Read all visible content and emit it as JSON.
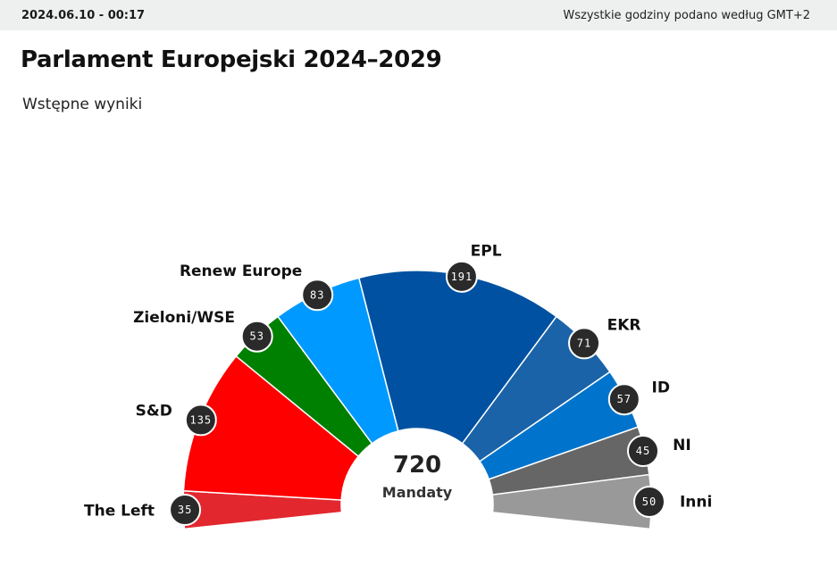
{
  "header": {
    "timestamp": "2024.06.10 - 00:17",
    "timezone_note": "Wszystkie godziny podano według GMT+2"
  },
  "title": "Parlament Europejski 2024–2029",
  "subtitle": "Wstępne wyniki",
  "chart_data": {
    "type": "pie",
    "style": "semicircle-donut",
    "total": 720,
    "total_label": "Mandaty",
    "series": [
      {
        "name": "The Left",
        "value": 35,
        "color": "#e3272f"
      },
      {
        "name": "S&D",
        "value": 135,
        "color": "#ff0000"
      },
      {
        "name": "Zieloni/WSE",
        "value": 53,
        "color": "#008000"
      },
      {
        "name": "Renew Europe",
        "value": 83,
        "color": "#0099ff"
      },
      {
        "name": "EPL",
        "value": 191,
        "color": "#0051a1"
      },
      {
        "name": "EKR",
        "value": 71,
        "color": "#1b63a8"
      },
      {
        "name": "ID",
        "value": 57,
        "color": "#0074cc"
      },
      {
        "name": "NI",
        "value": 45,
        "color": "#666666"
      },
      {
        "name": "Inni",
        "value": 50,
        "color": "#999999"
      }
    ]
  }
}
